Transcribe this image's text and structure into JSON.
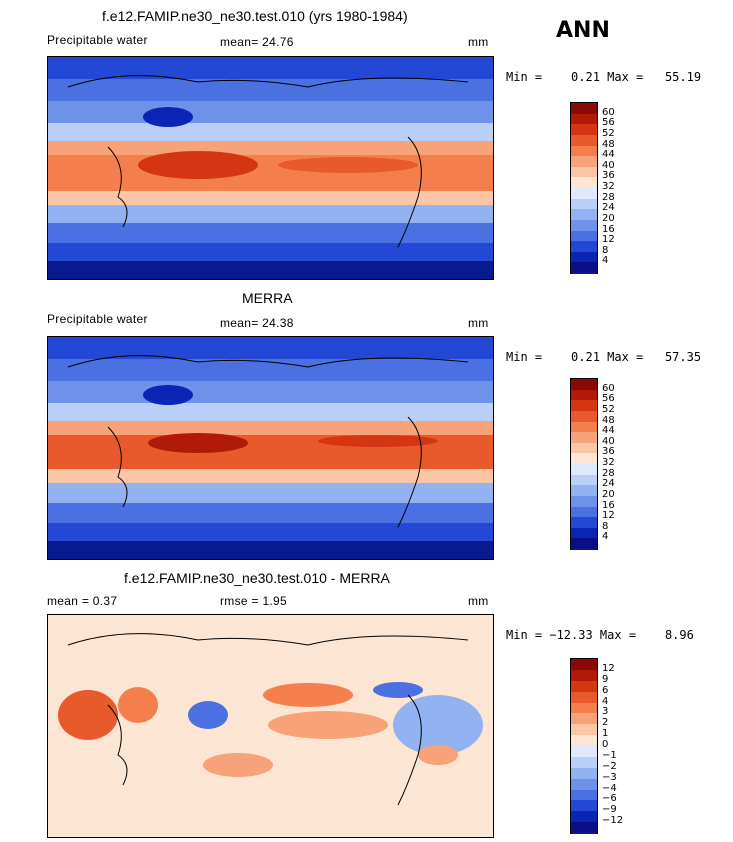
{
  "season": "ANN",
  "panels": [
    {
      "id": "model",
      "title": "f.e12.FAMIP.ne30_ne30.test.010 (yrs 1980-1984)",
      "variable": "Precipitable water",
      "stat_text": "mean=   24.76",
      "units": "mm",
      "minmax": "Min =    0.21 Max =   55.19",
      "colorbar_labels": [
        "60",
        "56",
        "52",
        "48",
        "44",
        "40",
        "36",
        "32",
        "28",
        "24",
        "20",
        "16",
        "12",
        "8",
        "4"
      ],
      "colorbar_colors": [
        "#8c0a05",
        "#b11a08",
        "#d53512",
        "#e85a2b",
        "#f47f4c",
        "#f8a27a",
        "#fbc6a5",
        "#fde5d3",
        "#dfe9fb",
        "#b9cff7",
        "#93b2f1",
        "#6e92ea",
        "#4a70e2",
        "#2448d6",
        "#0a24b5",
        "#0a0f87"
      ]
    },
    {
      "id": "obs",
      "title": "MERRA",
      "variable": "Precipitable water",
      "stat_text": "mean=   24.38",
      "units": "mm",
      "minmax": "Min =    0.21 Max =   57.35",
      "colorbar_labels": [
        "60",
        "56",
        "52",
        "48",
        "44",
        "40",
        "36",
        "32",
        "28",
        "24",
        "20",
        "16",
        "12",
        "8",
        "4"
      ],
      "colorbar_colors": [
        "#8c0a05",
        "#b11a08",
        "#d53512",
        "#e85a2b",
        "#f47f4c",
        "#f8a27a",
        "#fbc6a5",
        "#fde5d3",
        "#dfe9fb",
        "#b9cff7",
        "#93b2f1",
        "#6e92ea",
        "#4a70e2",
        "#2448d6",
        "#0a24b5",
        "#0a0f87"
      ]
    },
    {
      "id": "diff",
      "title": "f.e12.FAMIP.ne30_ne30.test.010 - MERRA",
      "variable": "mean =    0.37",
      "stat_text": "rmse =     1.95",
      "units": "mm",
      "minmax": "Min = −12.33 Max =    8.96",
      "colorbar_labels": [
        "12",
        "9",
        "6",
        "4",
        "3",
        "2",
        "1",
        "0",
        "−1",
        "−2",
        "−3",
        "−4",
        "−6",
        "−9",
        "−12"
      ],
      "colorbar_colors": [
        "#8c0a05",
        "#b11a08",
        "#d53512",
        "#e85a2b",
        "#f47f4c",
        "#f8a27a",
        "#fbc6a5",
        "#fde5d3",
        "#dfe9fb",
        "#b9cff7",
        "#93b2f1",
        "#6e92ea",
        "#4a70e2",
        "#2448d6",
        "#0a24b5",
        "#0a0f87"
      ]
    }
  ]
}
